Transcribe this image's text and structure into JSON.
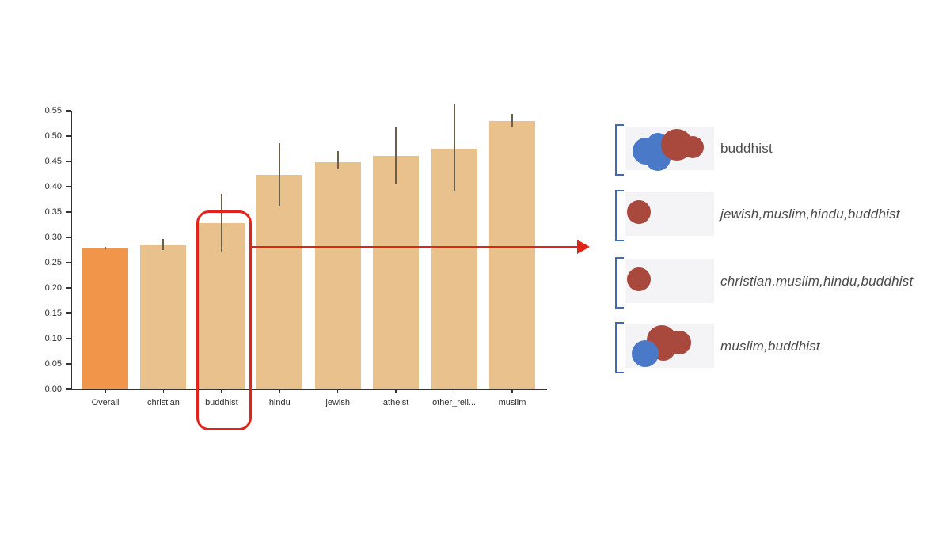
{
  "figure": {
    "background": "#ffffff"
  },
  "chart_data": {
    "type": "bar",
    "title": "",
    "xlabel": "",
    "ylabel": "",
    "categories": [
      "Overall",
      "christian",
      "buddhist",
      "hindu",
      "jewish",
      "atheist",
      "other_reli...",
      "muslim"
    ],
    "values": [
      0.278,
      0.285,
      0.328,
      0.423,
      0.449,
      0.461,
      0.475,
      0.529
    ],
    "error_low": [
      0.276,
      0.275,
      0.27,
      0.362,
      0.434,
      0.405,
      0.39,
      0.519
    ],
    "error_high": [
      0.281,
      0.297,
      0.386,
      0.486,
      0.47,
      0.518,
      0.563,
      0.543
    ],
    "ylim": [
      0,
      0.55
    ],
    "ytick_step": 0.05,
    "ytick_format_decimals": 2,
    "grid": "off",
    "legend": "none",
    "highlight_index": 2,
    "bar_color_default": "#E9C18D",
    "bar_color_overall": "#F0954A",
    "error_bar_color": "#6B6049",
    "axis_color": "#333333",
    "tick_label_color": "#2E2E2E"
  },
  "annotation": {
    "highlight_color": "#E3221A",
    "bracket_color": "#3D6CB2",
    "box_bg": "#F4F4F6",
    "label_color": "#4A4A4A",
    "blob_colors": {
      "blue": "#4A79C8",
      "red": "#A9493E"
    },
    "rows": [
      {
        "label": "buddhist",
        "italic": false,
        "dots": [
          {
            "color": "blue",
            "x": 10,
            "y": 14,
            "size": 34
          },
          {
            "color": "blue",
            "x": 26,
            "y": 24,
            "size": 32
          },
          {
            "color": "blue",
            "x": 28,
            "y": 8,
            "size": 28
          },
          {
            "color": "red",
            "x": 46,
            "y": 3,
            "size": 40
          },
          {
            "color": "red",
            "x": 72,
            "y": 12,
            "size": 28
          }
        ]
      },
      {
        "label": "jewish,muslim,hindu,buddhist",
        "italic": true,
        "dots": [
          {
            "color": "red",
            "x": 3,
            "y": 10,
            "size": 30
          }
        ]
      },
      {
        "label": "christian,muslim,hindu,buddhist",
        "italic": true,
        "dots": [
          {
            "color": "red",
            "x": 3,
            "y": 10,
            "size": 30
          }
        ]
      },
      {
        "label": "muslim,buddhist",
        "italic": true,
        "dots": [
          {
            "color": "red",
            "x": 28,
            "y": 1,
            "size": 38
          },
          {
            "color": "red",
            "x": 54,
            "y": 8,
            "size": 30
          },
          {
            "color": "red",
            "x": 34,
            "y": 16,
            "size": 30
          },
          {
            "color": "blue",
            "x": 9,
            "y": 20,
            "size": 34
          }
        ]
      }
    ]
  }
}
